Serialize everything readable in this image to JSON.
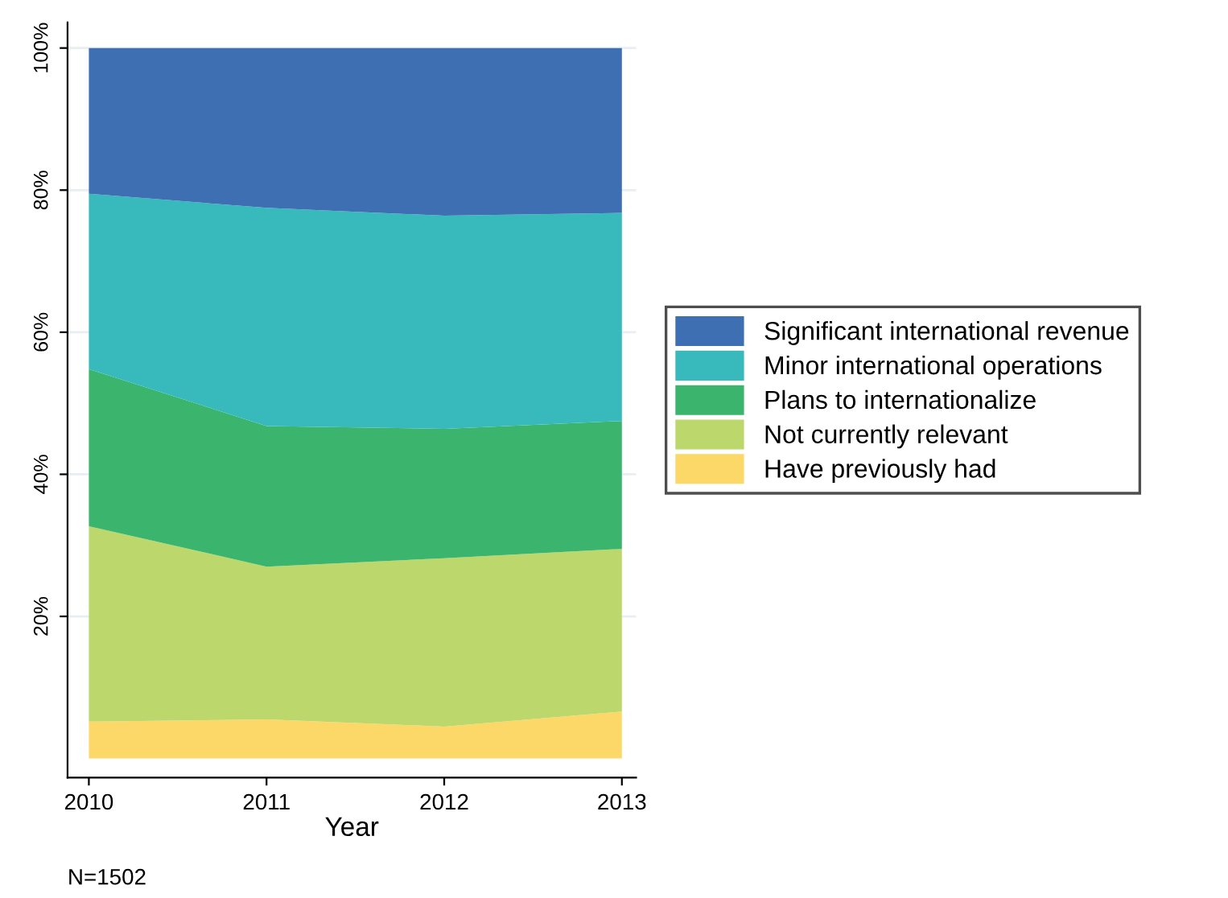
{
  "chart_data": {
    "type": "area",
    "stacked": true,
    "xlabel": "Year",
    "x": [
      2010,
      2011,
      2012,
      2013
    ],
    "series": [
      {
        "name": "Have previously had",
        "color": "#fcd869",
        "values": [
          5.2,
          5.5,
          4.5,
          6.6
        ]
      },
      {
        "name": "Not currently relevant",
        "color": "#bcd76b",
        "values": [
          27.5,
          21.5,
          23.7,
          22.9
        ]
      },
      {
        "name": "Plans to internationalize",
        "color": "#3bb56e",
        "values": [
          22.1,
          19.8,
          18.2,
          18.0
        ]
      },
      {
        "name": "Minor international operations",
        "color": "#38b9bc",
        "values": [
          24.7,
          30.7,
          30.0,
          29.3
        ]
      },
      {
        "name": "Significant international revenue",
        "color": "#3f6fb3",
        "values": [
          20.5,
          22.5,
          23.6,
          23.2
        ]
      }
    ],
    "xlim": [
      2009.88,
      2013.08
    ],
    "xticks": [
      2010,
      2011,
      2012,
      2013
    ],
    "ylim": [
      -2.7,
      103.6
    ],
    "yticks": [
      {
        "value": 20,
        "label": "20%"
      },
      {
        "value": 40,
        "label": "40%"
      },
      {
        "value": 60,
        "label": "60%"
      },
      {
        "value": 80,
        "label": "80%"
      },
      {
        "value": 100,
        "label": "100%"
      }
    ],
    "grid": "y",
    "legend": "right",
    "annotations": [
      "N=1502"
    ]
  }
}
